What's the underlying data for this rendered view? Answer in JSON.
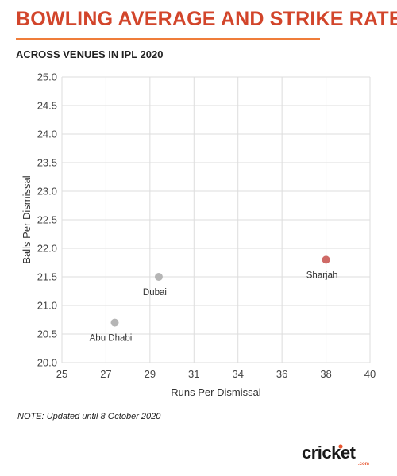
{
  "header": {
    "title": "BOWLING AVERAGE AND STRIKE RATE",
    "subtitle": "ACROSS VENUES IN IPL 2020"
  },
  "footer": {
    "note": "NOTE: Updated until 8 October 2020",
    "logo_text": "cricket",
    "logo_suffix": ".com"
  },
  "colors": {
    "title": "#d2452b",
    "highlight_point": "#cf6a66",
    "default_point": "#b5b5b5",
    "grid": "#dddddd"
  },
  "chart_data": {
    "type": "scatter",
    "title": "BOWLING AVERAGE AND STRIKE RATE",
    "subtitle": "ACROSS VENUES IN IPL 2020",
    "xlabel": "Runs Per Dismissal",
    "ylabel": "Balls Per Dismissal",
    "xlim": [
      25,
      40
    ],
    "ylim": [
      20.0,
      25.0
    ],
    "x_ticks": [
      25,
      27,
      29,
      31,
      34,
      36,
      38,
      40
    ],
    "y_ticks": [
      "20.0",
      "20.5",
      "21.0",
      "21.5",
      "22.0",
      "22.5",
      "23.0",
      "23.5",
      "24.0",
      "24.5",
      "25.0"
    ],
    "grid": true,
    "points": [
      {
        "label": "Abu Dhabi",
        "x": 27.4,
        "y": 20.7,
        "highlight": false
      },
      {
        "label": "Dubai",
        "x": 29.4,
        "y": 21.5,
        "highlight": false
      },
      {
        "label": "Sharjah",
        "x": 38.0,
        "y": 21.8,
        "highlight": true
      }
    ]
  }
}
